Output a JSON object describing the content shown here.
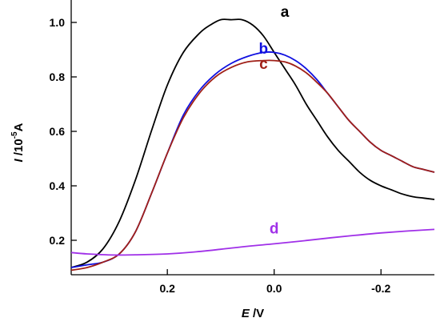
{
  "chart_data": {
    "type": "line",
    "title": "",
    "xlabel": {
      "italic": "E",
      "rest": " /V"
    },
    "ylabel": {
      "italic": "I",
      "rest": " /10",
      "sup": "-5",
      "tail": "A"
    },
    "xlim": [
      0.38,
      -0.3
    ],
    "ylim": [
      0.09,
      1.06
    ],
    "x_reversed": true,
    "x_ticks": [
      0.2,
      0.0,
      -0.2
    ],
    "x_tick_labels": [
      "0.2",
      "0.0",
      "-0.2"
    ],
    "y_ticks": [
      0.2,
      0.4,
      0.6,
      0.8,
      1.0
    ],
    "y_tick_labels": [
      "0.2",
      "0.4",
      "0.6",
      "0.8",
      "1.0"
    ],
    "grid": false,
    "series": [
      {
        "name": "a",
        "color": "#000000",
        "label_at": [
          -0.02,
          1.02
        ],
        "points": [
          [
            0.38,
            0.1
          ],
          [
            0.35,
            0.12
          ],
          [
            0.32,
            0.17
          ],
          [
            0.29,
            0.27
          ],
          [
            0.26,
            0.42
          ],
          [
            0.23,
            0.6
          ],
          [
            0.2,
            0.77
          ],
          [
            0.17,
            0.89
          ],
          [
            0.14,
            0.96
          ],
          [
            0.12,
            0.99
          ],
          [
            0.1,
            1.01
          ],
          [
            0.08,
            1.01
          ],
          [
            0.06,
            1.01
          ],
          [
            0.04,
            0.99
          ],
          [
            0.02,
            0.95
          ],
          [
            0.0,
            0.89
          ],
          [
            -0.02,
            0.83
          ],
          [
            -0.04,
            0.77
          ],
          [
            -0.06,
            0.7
          ],
          [
            -0.08,
            0.64
          ],
          [
            -0.1,
            0.58
          ],
          [
            -0.12,
            0.53
          ],
          [
            -0.14,
            0.49
          ],
          [
            -0.16,
            0.45
          ],
          [
            -0.18,
            0.42
          ],
          [
            -0.2,
            0.4
          ],
          [
            -0.22,
            0.385
          ],
          [
            -0.24,
            0.37
          ],
          [
            -0.26,
            0.36
          ],
          [
            -0.28,
            0.355
          ],
          [
            -0.3,
            0.35
          ]
        ]
      },
      {
        "name": "b",
        "color": "#1010e0",
        "label_at": [
          0.02,
          0.885
        ],
        "points": [
          [
            0.38,
            0.1
          ],
          [
            0.35,
            0.11
          ],
          [
            0.32,
            0.12
          ],
          [
            0.29,
            0.15
          ],
          [
            0.26,
            0.23
          ],
          [
            0.23,
            0.37
          ],
          [
            0.2,
            0.52
          ],
          [
            0.17,
            0.66
          ],
          [
            0.14,
            0.75
          ],
          [
            0.11,
            0.81
          ],
          [
            0.08,
            0.85
          ],
          [
            0.05,
            0.875
          ],
          [
            0.02,
            0.89
          ],
          [
            0.0,
            0.89
          ],
          [
            -0.02,
            0.88
          ],
          [
            -0.04,
            0.86
          ],
          [
            -0.06,
            0.83
          ],
          [
            -0.08,
            0.79
          ],
          [
            -0.1,
            0.74
          ],
          [
            -0.12,
            0.69
          ],
          [
            -0.14,
            0.64
          ],
          [
            -0.16,
            0.6
          ],
          [
            -0.18,
            0.56
          ],
          [
            -0.2,
            0.53
          ],
          [
            -0.22,
            0.51
          ],
          [
            -0.24,
            0.49
          ],
          [
            -0.26,
            0.47
          ],
          [
            -0.28,
            0.46
          ],
          [
            -0.3,
            0.45
          ]
        ]
      },
      {
        "name": "c",
        "color": "#a02018",
        "label_at": [
          0.02,
          0.83
        ],
        "points": [
          [
            0.38,
            0.09
          ],
          [
            0.35,
            0.1
          ],
          [
            0.32,
            0.12
          ],
          [
            0.29,
            0.15
          ],
          [
            0.26,
            0.23
          ],
          [
            0.23,
            0.37
          ],
          [
            0.2,
            0.52
          ],
          [
            0.17,
            0.65
          ],
          [
            0.14,
            0.74
          ],
          [
            0.11,
            0.8
          ],
          [
            0.08,
            0.835
          ],
          [
            0.05,
            0.855
          ],
          [
            0.02,
            0.86
          ],
          [
            0.0,
            0.86
          ],
          [
            -0.02,
            0.855
          ],
          [
            -0.04,
            0.84
          ],
          [
            -0.06,
            0.815
          ],
          [
            -0.08,
            0.78
          ],
          [
            -0.1,
            0.74
          ],
          [
            -0.12,
            0.69
          ],
          [
            -0.14,
            0.64
          ],
          [
            -0.16,
            0.6
          ],
          [
            -0.18,
            0.56
          ],
          [
            -0.2,
            0.53
          ],
          [
            -0.22,
            0.51
          ],
          [
            -0.24,
            0.49
          ],
          [
            -0.26,
            0.47
          ],
          [
            -0.28,
            0.46
          ],
          [
            -0.3,
            0.45
          ]
        ]
      },
      {
        "name": "d",
        "color": "#a030e8",
        "label_at": [
          0.0,
          0.225
        ],
        "points": [
          [
            0.38,
            0.155
          ],
          [
            0.35,
            0.15
          ],
          [
            0.3,
            0.146
          ],
          [
            0.25,
            0.147
          ],
          [
            0.2,
            0.15
          ],
          [
            0.15,
            0.157
          ],
          [
            0.1,
            0.167
          ],
          [
            0.05,
            0.178
          ],
          [
            0.0,
            0.187
          ],
          [
            -0.05,
            0.197
          ],
          [
            -0.1,
            0.208
          ],
          [
            -0.15,
            0.218
          ],
          [
            -0.2,
            0.227
          ],
          [
            -0.25,
            0.234
          ],
          [
            -0.3,
            0.24
          ]
        ]
      }
    ]
  }
}
